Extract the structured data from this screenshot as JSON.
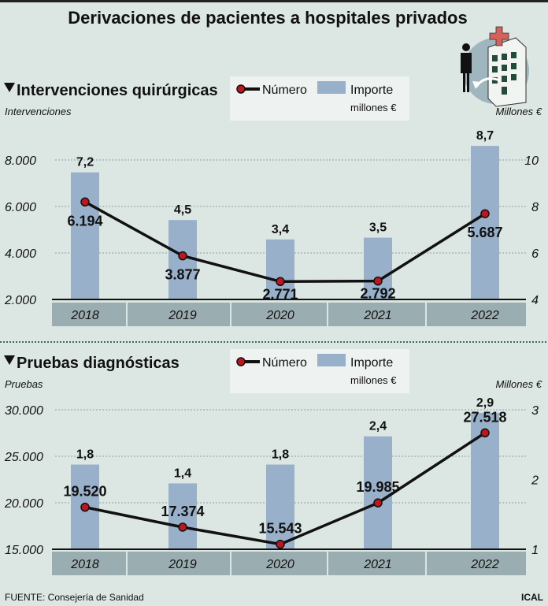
{
  "title": "Derivaciones de pacientes a hospitales privados",
  "source": "FUENTE: Consejería de Sanidad",
  "credit": "ICAL",
  "colors": {
    "background": "#dce6e3",
    "bar": "#98b0c9",
    "line": "#111111",
    "marker": "#c0151f",
    "year_band": "#9aaeb1"
  },
  "icon": "hospital-patient-icon",
  "chart_data": [
    {
      "type": "bar+line",
      "title": "Intervenciones quirúrgicas",
      "legend": {
        "line": "Número",
        "bar": "Importe",
        "bar_unit": "millones €"
      },
      "ylabel_left": "Intervenciones",
      "ylabel_right": "Millones €",
      "categories": [
        "2018",
        "2019",
        "2020",
        "2021",
        "2022"
      ],
      "yticks_left": [
        "2.000",
        "4.000",
        "6.000",
        "8.000"
      ],
      "yticks_left_values": [
        2000,
        4000,
        6000,
        8000
      ],
      "yticks_right": [
        "4",
        "6",
        "8",
        "10"
      ],
      "yticks_right_values": [
        4,
        6,
        8,
        10
      ],
      "ylim_left": [
        2000,
        8000
      ],
      "ylim_right": [
        4,
        10
      ],
      "series": [
        {
          "name": "Número",
          "type": "line",
          "axis": "left",
          "values": [
            6194,
            3877,
            2771,
            2792,
            5687
          ],
          "labels": [
            "6.194",
            "3.877",
            "2.771",
            "2.792",
            "5.687"
          ]
        },
        {
          "name": "Importe millones €",
          "type": "bar",
          "axis": "right",
          "values": [
            7.2,
            4.5,
            3.4,
            3.5,
            8.7
          ],
          "labels": [
            "7,2",
            "4,5",
            "3,4",
            "3,5",
            "8,7"
          ]
        }
      ],
      "grid": true
    },
    {
      "type": "bar+line",
      "title": "Pruebas diagnósticas",
      "legend": {
        "line": "Número",
        "bar": "Importe",
        "bar_unit": "millones €"
      },
      "ylabel_left": "Pruebas",
      "ylabel_right": "Millones €",
      "categories": [
        "2018",
        "2019",
        "2020",
        "2021",
        "2022"
      ],
      "yticks_left": [
        "15.000",
        "20.000",
        "25.000",
        "30.000"
      ],
      "yticks_left_values": [
        15000,
        20000,
        25000,
        30000
      ],
      "yticks_right": [
        "1",
        "2",
        "3"
      ],
      "yticks_right_values": [
        1,
        2,
        3
      ],
      "ylim_left": [
        15000,
        30000
      ],
      "ylim_right": [
        1,
        3
      ],
      "series": [
        {
          "name": "Número",
          "type": "line",
          "axis": "left",
          "values": [
            19520,
            17374,
            15543,
            19985,
            27518
          ],
          "labels": [
            "19.520",
            "17.374",
            "15.543",
            "19.985",
            "27.518"
          ]
        },
        {
          "name": "Importe millones €",
          "type": "bar",
          "axis": "right",
          "values": [
            1.8,
            1.4,
            1.8,
            2.4,
            2.9
          ],
          "labels": [
            "1,8",
            "1,4",
            "1,8",
            "2,4",
            "2,9"
          ]
        }
      ],
      "grid": true
    }
  ]
}
